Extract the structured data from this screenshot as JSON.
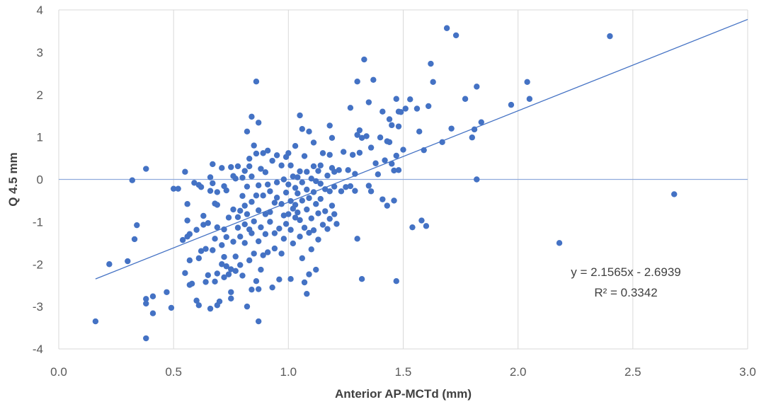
{
  "chart_data": {
    "type": "scatter",
    "xlabel": "Anterior AP-MCTd (mm)",
    "ylabel": "Q 4.5 mm",
    "xlim": [
      0,
      3
    ],
    "ylim": [
      -4,
      4
    ],
    "x_ticks": [
      "0.0",
      "0.5",
      "1.0",
      "1.5",
      "2.0",
      "2.5",
      "3.0"
    ],
    "y_ticks": [
      "-4",
      "-3",
      "-2",
      "-1",
      "0",
      "1",
      "2",
      "3",
      "4"
    ],
    "grid": "vertical",
    "colors": {
      "points": "#4472c4",
      "trendline": "#4472c4",
      "grid": "#d9d9d9",
      "zero_line": "#8faadc"
    },
    "trendline": {
      "type": "linear",
      "slope": 2.1565,
      "intercept": -2.6939,
      "x_range": [
        0.16,
        3.0
      ],
      "equation_label": "y = 2.1565x - 2.6939",
      "r2_label": "R² = 0.3342"
    },
    "points": [
      [
        0.16,
        -3.35
      ],
      [
        0.22,
        -2.0
      ],
      [
        0.3,
        -1.93
      ],
      [
        0.32,
        -0.02
      ],
      [
        0.33,
        -1.41
      ],
      [
        0.34,
        -1.08
      ],
      [
        0.38,
        0.25
      ],
      [
        0.38,
        -2.82
      ],
      [
        0.38,
        -2.93
      ],
      [
        0.38,
        -3.75
      ],
      [
        0.41,
        -2.76
      ],
      [
        0.41,
        -3.16
      ],
      [
        0.47,
        -2.66
      ],
      [
        0.49,
        -3.03
      ],
      [
        0.5,
        -0.22
      ],
      [
        0.52,
        -0.22
      ],
      [
        0.54,
        -1.43
      ],
      [
        0.55,
        0.18
      ],
      [
        0.55,
        -2.21
      ],
      [
        0.56,
        -0.58
      ],
      [
        0.56,
        -0.97
      ],
      [
        0.56,
        -1.35
      ],
      [
        0.57,
        -1.29
      ],
      [
        0.57,
        -1.91
      ],
      [
        0.57,
        -2.49
      ],
      [
        0.58,
        -2.46
      ],
      [
        0.59,
        -0.08
      ],
      [
        0.6,
        -1.19
      ],
      [
        0.6,
        -2.86
      ],
      [
        0.61,
        -0.13
      ],
      [
        0.61,
        -1.86
      ],
      [
        0.61,
        -2.97
      ],
      [
        0.62,
        -0.18
      ],
      [
        0.62,
        -1.69
      ],
      [
        0.63,
        -0.86
      ],
      [
        0.63,
        -1.07
      ],
      [
        0.64,
        -1.64
      ],
      [
        0.64,
        -2.42
      ],
      [
        0.65,
        -2.26
      ],
      [
        0.65,
        -1.03
      ],
      [
        0.66,
        0.05
      ],
      [
        0.66,
        -0.27
      ],
      [
        0.66,
        -3.05
      ],
      [
        0.67,
        -0.09
      ],
      [
        0.67,
        0.36
      ],
      [
        0.67,
        -1.67
      ],
      [
        0.68,
        -0.57
      ],
      [
        0.68,
        -1.4
      ],
      [
        0.68,
        -2.41
      ],
      [
        0.69,
        -0.6
      ],
      [
        0.69,
        -0.3
      ],
      [
        0.69,
        -1.13
      ],
      [
        0.69,
        -2.22
      ],
      [
        0.69,
        -2.97
      ],
      [
        0.7,
        -2.88
      ],
      [
        0.71,
        0.27
      ],
      [
        0.71,
        -1.55
      ],
      [
        0.71,
        -2.0
      ],
      [
        0.72,
        -0.16
      ],
      [
        0.72,
        -1.18
      ],
      [
        0.72,
        -1.83
      ],
      [
        0.72,
        -2.31
      ],
      [
        0.73,
        -0.26
      ],
      [
        0.73,
        -1.36
      ],
      [
        0.73,
        -2.05
      ],
      [
        0.74,
        -0.9
      ],
      [
        0.74,
        -2.24
      ],
      [
        0.75,
        0.29
      ],
      [
        0.75,
        -2.12
      ],
      [
        0.75,
        -2.66
      ],
      [
        0.75,
        -2.81
      ],
      [
        0.76,
        0.08
      ],
      [
        0.76,
        -0.71
      ],
      [
        0.76,
        -1.47
      ],
      [
        0.77,
        0.02
      ],
      [
        0.77,
        -1.82
      ],
      [
        0.77,
        -2.16
      ],
      [
        0.78,
        0.31
      ],
      [
        0.78,
        -0.89
      ],
      [
        0.78,
        -1.14
      ],
      [
        0.79,
        -0.74
      ],
      [
        0.79,
        -1.35
      ],
      [
        0.79,
        -2.02
      ],
      [
        0.8,
        -0.39
      ],
      [
        0.8,
        0.04
      ],
      [
        0.8,
        -2.27
      ],
      [
        0.81,
        0.2
      ],
      [
        0.81,
        -0.62
      ],
      [
        0.81,
        -1.06
      ],
      [
        0.81,
        -1.5
      ],
      [
        0.82,
        1.13
      ],
      [
        0.82,
        -0.17
      ],
      [
        0.82,
        -0.82
      ],
      [
        0.82,
        -3.0
      ],
      [
        0.83,
        0.31
      ],
      [
        0.83,
        0.49
      ],
      [
        0.83,
        -1.18
      ],
      [
        0.83,
        -1.91
      ],
      [
        0.84,
        1.48
      ],
      [
        0.84,
        0.07
      ],
      [
        0.84,
        -0.53
      ],
      [
        0.84,
        -1.27
      ],
      [
        0.84,
        -2.6
      ],
      [
        0.85,
        0.8
      ],
      [
        0.85,
        -0.99
      ],
      [
        0.85,
        -1.75
      ],
      [
        0.86,
        2.31
      ],
      [
        0.86,
        0.61
      ],
      [
        0.86,
        -0.38
      ],
      [
        0.86,
        -2.4
      ],
      [
        0.87,
        1.34
      ],
      [
        0.87,
        -0.14
      ],
      [
        0.87,
        -0.73
      ],
      [
        0.87,
        -1.46
      ],
      [
        0.87,
        -2.59
      ],
      [
        0.87,
        -3.35
      ],
      [
        0.88,
        0.25
      ],
      [
        0.88,
        -1.13
      ],
      [
        0.88,
        -2.13
      ],
      [
        0.89,
        0.62
      ],
      [
        0.89,
        -0.38
      ],
      [
        0.89,
        -1.79
      ],
      [
        0.9,
        0.17
      ],
      [
        0.9,
        -0.82
      ],
      [
        0.9,
        -1.29
      ],
      [
        0.91,
        0.68
      ],
      [
        0.91,
        -0.12
      ],
      [
        0.91,
        -1.72
      ],
      [
        0.92,
        -0.28
      ],
      [
        0.92,
        -0.77
      ],
      [
        0.92,
        -1.0
      ],
      [
        0.93,
        0.44
      ],
      [
        0.93,
        -2.55
      ],
      [
        0.94,
        -0.55
      ],
      [
        0.94,
        -1.27
      ],
      [
        0.94,
        -1.63
      ],
      [
        0.95,
        0.57
      ],
      [
        0.95,
        -0.07
      ],
      [
        0.95,
        -0.43
      ],
      [
        0.96,
        -1.16
      ],
      [
        0.96,
        -2.36
      ],
      [
        0.97,
        0.33
      ],
      [
        0.97,
        -0.58
      ],
      [
        0.97,
        -1.75
      ],
      [
        0.98,
        0.0
      ],
      [
        0.98,
        -0.85
      ],
      [
        0.98,
        -1.4
      ],
      [
        0.99,
        0.53
      ],
      [
        0.99,
        -0.31
      ],
      [
        0.99,
        -1.05
      ],
      [
        1.0,
        0.62
      ],
      [
        1.0,
        -0.12
      ],
      [
        1.0,
        -0.82
      ],
      [
        1.01,
        0.33
      ],
      [
        1.01,
        -0.51
      ],
      [
        1.01,
        -1.19
      ],
      [
        1.01,
        -2.35
      ],
      [
        1.02,
        0.07
      ],
      [
        1.02,
        -0.69
      ],
      [
        1.02,
        -1.51
      ],
      [
        1.03,
        0.79
      ],
      [
        1.03,
        -0.2
      ],
      [
        1.03,
        -0.6
      ],
      [
        1.03,
        -0.9
      ],
      [
        1.04,
        0.05
      ],
      [
        1.04,
        -0.33
      ],
      [
        1.04,
        -0.78
      ],
      [
        1.05,
        1.51
      ],
      [
        1.05,
        0.19
      ],
      [
        1.05,
        -0.96
      ],
      [
        1.05,
        -1.35
      ],
      [
        1.06,
        1.19
      ],
      [
        1.06,
        -0.07
      ],
      [
        1.06,
        -0.5
      ],
      [
        1.06,
        -1.86
      ],
      [
        1.07,
        0.55
      ],
      [
        1.07,
        -1.14
      ],
      [
        1.07,
        -2.43
      ],
      [
        1.08,
        0.18
      ],
      [
        1.08,
        -0.24
      ],
      [
        1.08,
        -0.71
      ],
      [
        1.08,
        -2.7
      ],
      [
        1.09,
        1.13
      ],
      [
        1.09,
        -0.44
      ],
      [
        1.09,
        -1.26
      ],
      [
        1.09,
        -2.24
      ],
      [
        1.1,
        0.02
      ],
      [
        1.1,
        -0.92
      ],
      [
        1.1,
        -1.65
      ],
      [
        1.11,
        0.87
      ],
      [
        1.11,
        0.31
      ],
      [
        1.11,
        -0.3
      ],
      [
        1.11,
        -1.2
      ],
      [
        1.12,
        -0.04
      ],
      [
        1.12,
        -0.58
      ],
      [
        1.12,
        -2.13
      ],
      [
        1.13,
        0.2
      ],
      [
        1.13,
        -0.8
      ],
      [
        1.13,
        -1.42
      ],
      [
        1.14,
        0.33
      ],
      [
        1.14,
        -0.1
      ],
      [
        1.14,
        -0.46
      ],
      [
        1.15,
        0.62
      ],
      [
        1.15,
        -1.07
      ],
      [
        1.16,
        -0.23
      ],
      [
        1.16,
        -0.75
      ],
      [
        1.17,
        0.09
      ],
      [
        1.17,
        -1.17
      ],
      [
        1.18,
        1.27
      ],
      [
        1.18,
        0.58
      ],
      [
        1.18,
        -0.28
      ],
      [
        1.18,
        -0.93
      ],
      [
        1.19,
        0.98
      ],
      [
        1.19,
        0.27
      ],
      [
        1.19,
        -0.62
      ],
      [
        1.2,
        0.18
      ],
      [
        1.2,
        -0.17
      ],
      [
        1.2,
        -0.82
      ],
      [
        1.21,
        -1.05
      ],
      [
        1.22,
        0.22
      ],
      [
        1.23,
        -0.28
      ],
      [
        1.24,
        0.65
      ],
      [
        1.25,
        -0.18
      ],
      [
        1.26,
        0.22
      ],
      [
        1.27,
        1.69
      ],
      [
        1.27,
        -0.16
      ],
      [
        1.28,
        0.58
      ],
      [
        1.29,
        0.13
      ],
      [
        1.29,
        -0.27
      ],
      [
        1.3,
        1.05
      ],
      [
        1.3,
        2.31
      ],
      [
        1.3,
        -1.4
      ],
      [
        1.31,
        1.16
      ],
      [
        1.31,
        0.63
      ],
      [
        1.32,
        -2.35
      ],
      [
        1.32,
        0.98
      ],
      [
        1.33,
        2.83
      ],
      [
        1.34,
        1.02
      ],
      [
        1.35,
        1.82
      ],
      [
        1.35,
        -0.15
      ],
      [
        1.36,
        0.75
      ],
      [
        1.36,
        -0.28
      ],
      [
        1.37,
        2.35
      ],
      [
        1.38,
        0.38
      ],
      [
        1.39,
        0.12
      ],
      [
        1.4,
        0.99
      ],
      [
        1.41,
        1.6
      ],
      [
        1.41,
        -0.47
      ],
      [
        1.42,
        0.45
      ],
      [
        1.43,
        0.9
      ],
      [
        1.43,
        -0.62
      ],
      [
        1.44,
        1.42
      ],
      [
        1.44,
        0.88
      ],
      [
        1.45,
        1.28
      ],
      [
        1.45,
        0.37
      ],
      [
        1.46,
        0.21
      ],
      [
        1.46,
        -0.5
      ],
      [
        1.47,
        1.9
      ],
      [
        1.47,
        0.56
      ],
      [
        1.47,
        -2.4
      ],
      [
        1.48,
        1.6
      ],
      [
        1.48,
        1.25
      ],
      [
        1.48,
        0.22
      ],
      [
        1.49,
        1.59
      ],
      [
        1.5,
        0.7
      ],
      [
        1.51,
        1.67
      ],
      [
        1.53,
        1.89
      ],
      [
        1.54,
        -1.13
      ],
      [
        1.56,
        1.67
      ],
      [
        1.57,
        1.13
      ],
      [
        1.58,
        -0.97
      ],
      [
        1.59,
        0.69
      ],
      [
        1.6,
        -1.1
      ],
      [
        1.61,
        1.73
      ],
      [
        1.62,
        2.73
      ],
      [
        1.63,
        2.3
      ],
      [
        1.67,
        0.88
      ],
      [
        1.69,
        3.57
      ],
      [
        1.71,
        1.2
      ],
      [
        1.73,
        3.4
      ],
      [
        1.77,
        1.9
      ],
      [
        1.8,
        0.99
      ],
      [
        1.81,
        1.18
      ],
      [
        1.82,
        2.19
      ],
      [
        1.82,
        0.0
      ],
      [
        1.84,
        1.35
      ],
      [
        1.97,
        1.76
      ],
      [
        2.04,
        2.3
      ],
      [
        2.05,
        1.9
      ],
      [
        2.18,
        -1.5
      ],
      [
        2.4,
        3.38
      ],
      [
        2.68,
        -0.35
      ]
    ]
  }
}
